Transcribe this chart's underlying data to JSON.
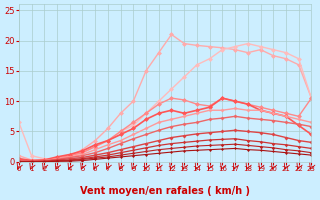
{
  "bg_color": "#cceeff",
  "grid_color": "#aacccc",
  "xlabel": "Vent moyen/en rafales ( km/h )",
  "xlabel_color": "#cc0000",
  "xlabel_fontsize": 7,
  "tick_label_color": "#cc0000",
  "xlim": [
    0,
    23
  ],
  "ylim": [
    0,
    26
  ],
  "yticks": [
    0,
    5,
    10,
    15,
    20,
    25
  ],
  "xticks": [
    0,
    1,
    2,
    3,
    4,
    5,
    6,
    7,
    8,
    9,
    10,
    11,
    12,
    13,
    14,
    15,
    16,
    17,
    18,
    19,
    20,
    21,
    22,
    23
  ],
  "lines": [
    {
      "x": [
        0,
        1,
        2,
        3,
        4,
        5,
        6,
        7,
        8,
        9,
        10,
        11,
        12,
        13,
        14,
        15,
        16,
        17,
        18,
        19,
        20,
        21,
        22,
        23
      ],
      "y": [
        1.0,
        0.3,
        0.2,
        0.5,
        1.0,
        2.0,
        3.5,
        5.5,
        8.0,
        10.0,
        15.0,
        18.0,
        21.0,
        19.5,
        19.2,
        19.0,
        18.8,
        18.5,
        18.0,
        18.5,
        17.5,
        17.0,
        16.0,
        10.5
      ],
      "color": "#ffaaaa",
      "lw": 1.0,
      "marker": "D",
      "ms": 2.5
    },
    {
      "x": [
        0,
        1,
        2,
        3,
        4,
        5,
        6,
        7,
        8,
        9,
        10,
        11,
        12,
        13,
        14,
        15,
        16,
        17,
        18,
        19,
        20,
        21,
        22,
        23
      ],
      "y": [
        6.5,
        1.0,
        0.5,
        0.5,
        1.0,
        1.5,
        2.5,
        3.5,
        5.0,
        6.0,
        8.0,
        10.0,
        12.0,
        14.0,
        16.0,
        17.0,
        18.5,
        19.0,
        19.5,
        19.0,
        18.5,
        18.0,
        17.0,
        10.5
      ],
      "color": "#ffbbbb",
      "lw": 1.0,
      "marker": "D",
      "ms": 2.5
    },
    {
      "x": [
        0,
        1,
        2,
        3,
        4,
        5,
        6,
        7,
        8,
        9,
        10,
        11,
        12,
        13,
        14,
        15,
        16,
        17,
        18,
        19,
        20,
        21,
        22,
        23
      ],
      "y": [
        0.5,
        0.2,
        0.3,
        0.5,
        1.0,
        1.5,
        2.5,
        3.5,
        5.0,
        6.5,
        8.0,
        9.5,
        10.5,
        10.2,
        9.5,
        9.2,
        10.5,
        10.0,
        9.5,
        9.0,
        8.5,
        8.0,
        7.5,
        10.5
      ],
      "color": "#ff8888",
      "lw": 1.0,
      "marker": "D",
      "ms": 2.5
    },
    {
      "x": [
        0,
        1,
        2,
        3,
        4,
        5,
        6,
        7,
        8,
        9,
        10,
        11,
        12,
        13,
        14,
        15,
        16,
        17,
        18,
        19,
        20,
        21,
        22,
        23
      ],
      "y": [
        0.5,
        0.2,
        0.3,
        0.8,
        1.2,
        1.8,
        2.8,
        3.5,
        4.5,
        5.5,
        7.0,
        8.0,
        8.5,
        8.0,
        8.5,
        9.0,
        10.5,
        10.0,
        9.5,
        8.5,
        8.0,
        7.5,
        6.0,
        4.5
      ],
      "color": "#ff5555",
      "lw": 1.2,
      "marker": "D",
      "ms": 2.5
    },
    {
      "x": [
        0,
        1,
        2,
        3,
        4,
        5,
        6,
        7,
        8,
        9,
        10,
        11,
        12,
        13,
        14,
        15,
        16,
        17,
        18,
        19,
        20,
        21,
        22,
        23
      ],
      "y": [
        0.2,
        0.1,
        0.2,
        0.5,
        0.8,
        1.2,
        2.0,
        2.8,
        3.5,
        4.5,
        5.5,
        6.5,
        7.0,
        7.5,
        8.0,
        8.5,
        8.5,
        8.8,
        8.5,
        8.5,
        8.0,
        7.5,
        7.0,
        6.5
      ],
      "color": "#ff9999",
      "lw": 1.0,
      "marker": "D",
      "ms": 2.0
    },
    {
      "x": [
        0,
        1,
        2,
        3,
        4,
        5,
        6,
        7,
        8,
        9,
        10,
        11,
        12,
        13,
        14,
        15,
        16,
        17,
        18,
        19,
        20,
        21,
        22,
        23
      ],
      "y": [
        0.1,
        0.1,
        0.2,
        0.4,
        0.7,
        1.0,
        1.5,
        2.2,
        3.0,
        3.8,
        4.5,
        5.2,
        5.8,
        6.2,
        6.5,
        7.0,
        7.2,
        7.5,
        7.2,
        7.0,
        6.8,
        6.5,
        6.2,
        5.8
      ],
      "color": "#ee6666",
      "lw": 1.0,
      "marker": "D",
      "ms": 2.0
    },
    {
      "x": [
        0,
        1,
        2,
        3,
        4,
        5,
        6,
        7,
        8,
        9,
        10,
        11,
        12,
        13,
        14,
        15,
        16,
        17,
        18,
        19,
        20,
        21,
        22,
        23
      ],
      "y": [
        0.1,
        0.1,
        0.1,
        0.3,
        0.5,
        0.7,
        1.1,
        1.5,
        2.0,
        2.5,
        3.0,
        3.5,
        4.0,
        4.3,
        4.6,
        4.8,
        5.0,
        5.2,
        5.0,
        4.8,
        4.5,
        4.0,
        3.5,
        3.2
      ],
      "color": "#dd4444",
      "lw": 1.0,
      "marker": "D",
      "ms": 2.0
    },
    {
      "x": [
        0,
        1,
        2,
        3,
        4,
        5,
        6,
        7,
        8,
        9,
        10,
        11,
        12,
        13,
        14,
        15,
        16,
        17,
        18,
        19,
        20,
        21,
        22,
        23
      ],
      "y": [
        0.0,
        0.0,
        0.1,
        0.2,
        0.3,
        0.5,
        0.8,
        1.1,
        1.5,
        1.9,
        2.3,
        2.7,
        3.0,
        3.2,
        3.4,
        3.6,
        3.7,
        3.8,
        3.5,
        3.3,
        3.0,
        2.8,
        2.5,
        2.2
      ],
      "color": "#cc3333",
      "lw": 0.9,
      "marker": "D",
      "ms": 1.8
    },
    {
      "x": [
        0,
        1,
        2,
        3,
        4,
        5,
        6,
        7,
        8,
        9,
        10,
        11,
        12,
        13,
        14,
        15,
        16,
        17,
        18,
        19,
        20,
        21,
        22,
        23
      ],
      "y": [
        0.0,
        0.0,
        0.0,
        0.1,
        0.2,
        0.4,
        0.6,
        0.8,
        1.1,
        1.4,
        1.7,
        2.0,
        2.2,
        2.4,
        2.6,
        2.7,
        2.8,
        2.9,
        2.7,
        2.5,
        2.3,
        2.0,
        1.8,
        1.5
      ],
      "color": "#bb2222",
      "lw": 0.8,
      "marker": "D",
      "ms": 1.8
    },
    {
      "x": [
        0,
        1,
        2,
        3,
        4,
        5,
        6,
        7,
        8,
        9,
        10,
        11,
        12,
        13,
        14,
        15,
        16,
        17,
        18,
        19,
        20,
        21,
        22,
        23
      ],
      "y": [
        0.0,
        0.0,
        0.0,
        0.1,
        0.1,
        0.2,
        0.4,
        0.6,
        0.8,
        1.0,
        1.2,
        1.4,
        1.6,
        1.8,
        1.9,
        2.0,
        2.1,
        2.2,
        2.0,
        1.9,
        1.7,
        1.5,
        1.3,
        1.1
      ],
      "color": "#aa1111",
      "lw": 0.8,
      "marker": "D",
      "ms": 1.5
    }
  ]
}
